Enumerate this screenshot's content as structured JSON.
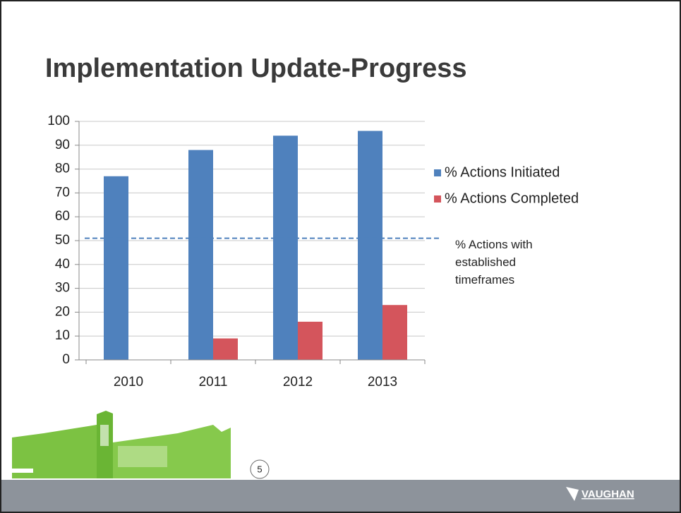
{
  "chart_data": {
    "type": "bar",
    "title": "Implementation Update-Progress",
    "categories": [
      "2010",
      "2011",
      "2012",
      "2013"
    ],
    "series": [
      {
        "name": "% Actions Initiated",
        "color": "#4f81bd",
        "values": [
          77,
          88,
          94,
          96
        ]
      },
      {
        "name": "% Actions Completed",
        "color": "#d4555c",
        "values": [
          null,
          9,
          16,
          23
        ]
      }
    ],
    "ylim": [
      0,
      100
    ],
    "yticks": [
      0,
      10,
      20,
      30,
      40,
      50,
      60,
      70,
      80,
      90,
      100
    ],
    "grid": true,
    "legend": "right",
    "reference_line": {
      "value": 51,
      "label": "% Actions with established timeframes",
      "color": "#4f81bd",
      "style": "dashed"
    }
  },
  "slide_number": "5",
  "logo": "VAUGHAN"
}
